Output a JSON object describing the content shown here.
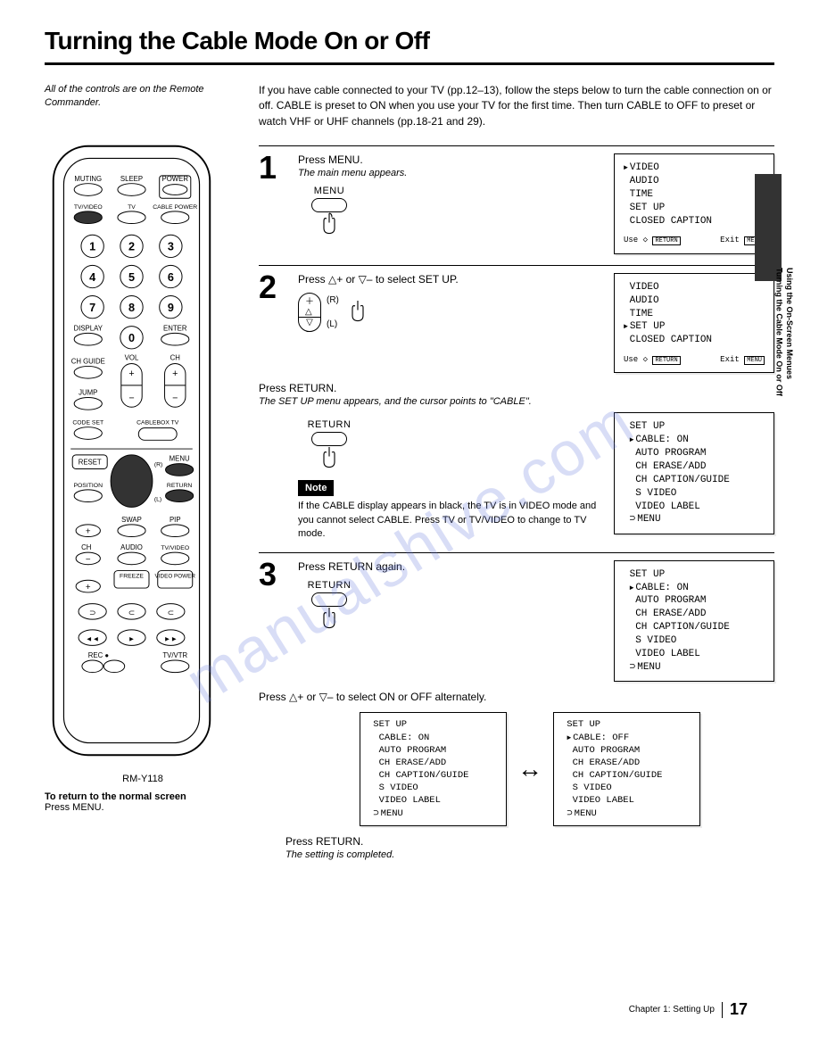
{
  "title": "Turning the Cable Mode On or Off",
  "left_caption": "All of the controls are on the Remote Commander.",
  "remote_model": "RM-Y118",
  "return_note_bold": "To return to the normal screen",
  "return_note_text": "Press MENU.",
  "intro": "If you have cable connected to your TV (pp.12–13), follow the steps below to turn the cable connection on or off. CABLE is preset to ON when you use your TV for the first time. Then turn CABLE to OFF to preset or watch VHF or UHF channels (pp.18-21 and 29).",
  "step1": {
    "instr": "Press MENU.",
    "sub": "The main menu appears.",
    "button": "MENU"
  },
  "step2": {
    "instr": "Press △+ or ▽– to select SET UP.",
    "r_label": "(R)",
    "l_label": "(L)",
    "after": "Press RETURN.",
    "after_sub": "The SET UP menu appears, and the cursor points to \"CABLE\".",
    "button2": "RETURN"
  },
  "note_label": "Note",
  "note_text": "If the CABLE display appears in black, the TV is in VIDEO mode and you cannot select CABLE. Press TV or TV/VIDEO to change to TV mode.",
  "step3": {
    "instr": "Press RETURN again.",
    "button": "RETURN",
    "after": "Press △+ or ▽– to select ON or OFF alternately.",
    "final": "Press RETURN.",
    "final_sub": "The setting is completed."
  },
  "osd_main": {
    "items": [
      "VIDEO",
      "AUDIO",
      "TIME",
      "SET UP",
      "CLOSED CAPTION"
    ],
    "cursor": 0,
    "footer_use": "Use  ◇",
    "footer_ret": "RETURN",
    "footer_exit": "Exit MENU"
  },
  "osd_main2": {
    "items": [
      "VIDEO",
      "AUDIO",
      "TIME",
      "SET UP",
      "CLOSED CAPTION"
    ],
    "cursor": 3,
    "footer_use": "Use  ◇",
    "footer_ret": "RETURN",
    "footer_exit": "Exit MENU"
  },
  "osd_setup": {
    "title": "SET UP",
    "items": [
      "CABLE: ON",
      "AUTO PROGRAM",
      "CH ERASE/ADD",
      "CH CAPTION/GUIDE",
      "S VIDEO",
      "VIDEO LABEL"
    ],
    "cursor": 0,
    "menu": "MENU"
  },
  "osd_setup_on": {
    "title": "SET UP",
    "items": [
      "CABLE: ON",
      "AUTO PROGRAM",
      "CH ERASE/ADD",
      "CH CAPTION/GUIDE",
      "S VIDEO",
      "VIDEO LABEL"
    ],
    "cursor": 0,
    "menu": "MENU"
  },
  "osd_setup_off": {
    "title": "SET UP",
    "items": [
      "CABLE: OFF",
      "AUTO PROGRAM",
      "CH ERASE/ADD",
      "CH CAPTION/GUIDE",
      "S VIDEO",
      "VIDEO LABEL"
    ],
    "cursor": 0,
    "menu": "MENU"
  },
  "side_tab1": "Using the On-Screen Menues",
  "side_tab2": "Turning the Cable Mode On or Off",
  "footer_chapter": "Chapter 1: Setting Up",
  "page_number": "17",
  "watermark": "manualshive.com",
  "remote_buttons": {
    "row0": [
      "MUTING",
      "SLEEP",
      "POWER"
    ],
    "row0b": [
      "TV/VIDEO",
      "TV",
      "CABLE POWER"
    ],
    "nums": [
      "1",
      "2",
      "3",
      "4",
      "5",
      "6",
      "7",
      "8",
      "9",
      "0"
    ],
    "display": "DISPLAY",
    "enter": "ENTER",
    "chguide": "CH GUIDE",
    "vol": "VOL",
    "ch": "CH",
    "jump": "JUMP",
    "codeset": "CODE SET",
    "cablebox": "CABLEBOX TV",
    "reset": "RESET",
    "menu": "MENU",
    "position": "POSITION",
    "return": "RETURN",
    "swap": "SWAP",
    "pip": "PIP",
    "audio": "AUDIO",
    "tvvideo": "TV/VIDEO",
    "freeze": "FREEZE",
    "videopower": "VIDEO POWER",
    "rec": "REC",
    "tvvtr": "TV/VTR"
  }
}
